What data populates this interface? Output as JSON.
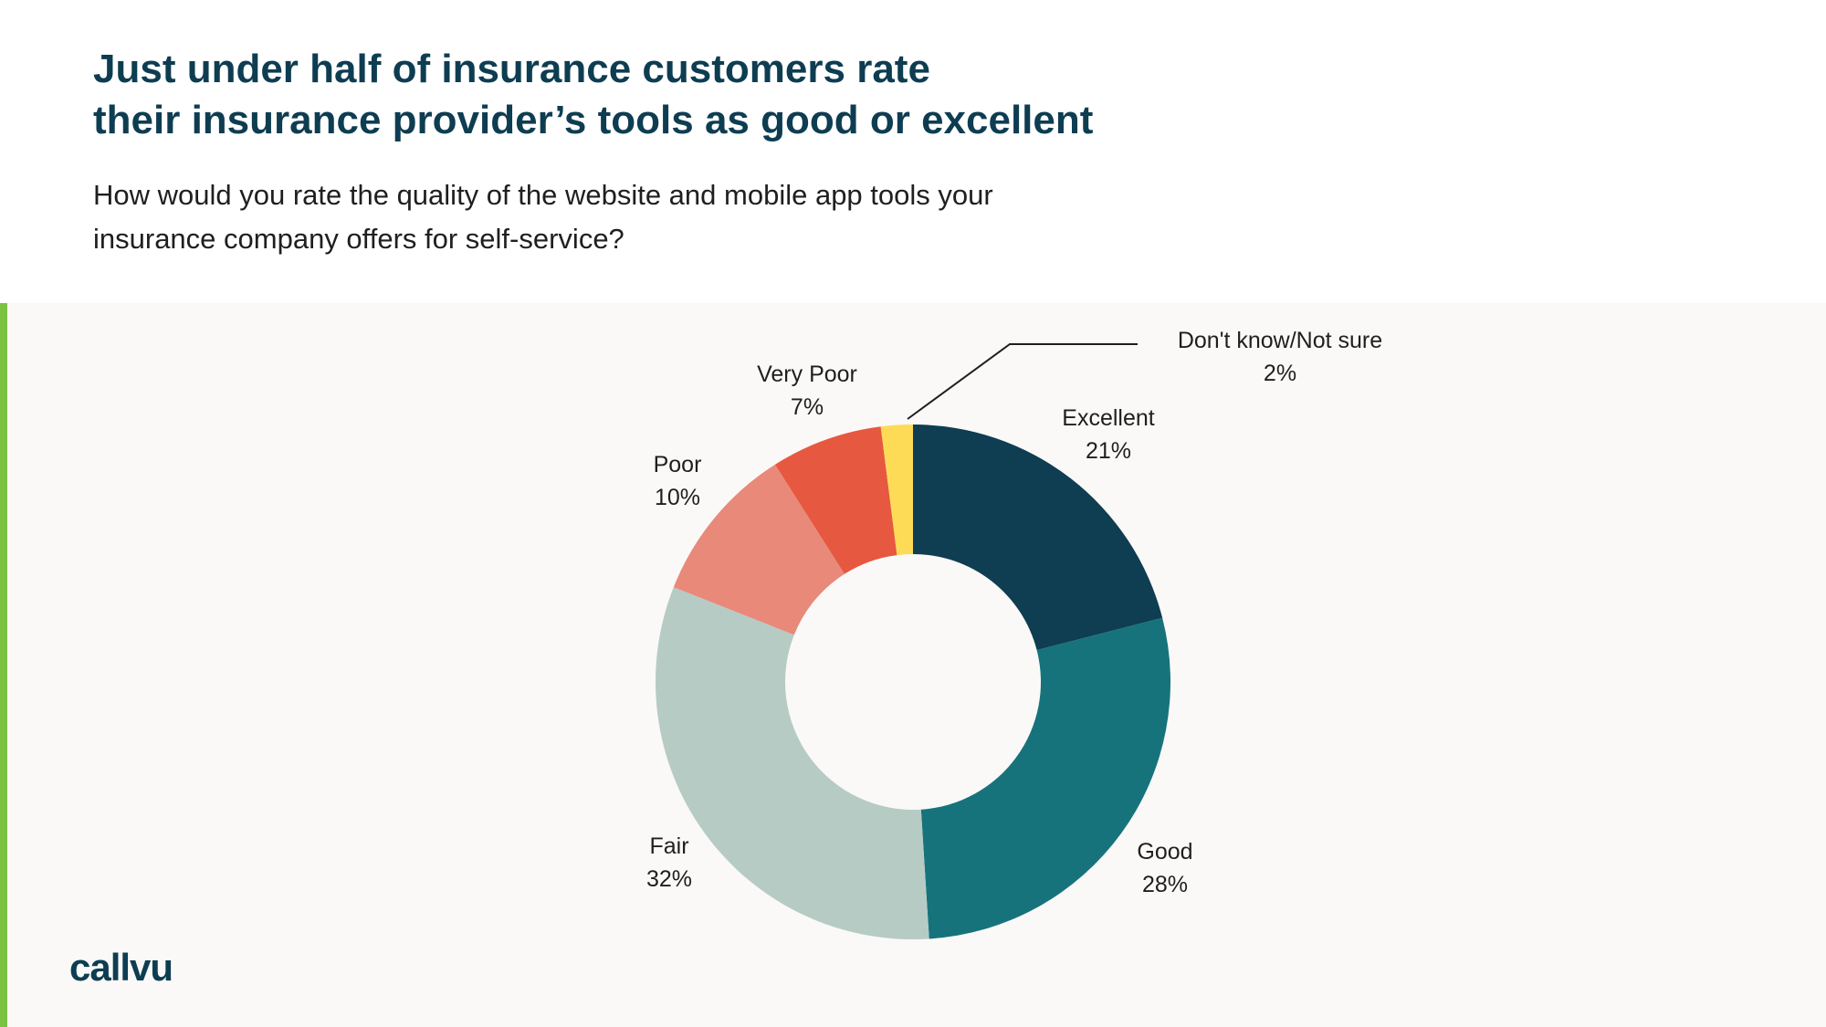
{
  "header": {
    "title_line1": "Just under half of insurance customers rate",
    "title_line2": "their insurance provider’s tools as good or excellent",
    "subtitle_line1": "How would you rate the quality of the website and mobile app tools your",
    "subtitle_line2": "insurance company offers for self-service?"
  },
  "logo": {
    "text": "callvu"
  },
  "colors": {
    "accent": "#7cc242",
    "title": "#0e3d52",
    "chart_background": "#faf9f7"
  },
  "chart_data": {
    "type": "pie",
    "donut": true,
    "start": "top, clockwise",
    "categories": [
      "Excellent",
      "Good",
      "Fair",
      "Poor",
      "Very Poor",
      "Don't know/Not sure"
    ],
    "values": [
      21,
      28,
      32,
      10,
      7,
      2
    ],
    "value_labels": [
      "21%",
      "28%",
      "32%",
      "10%",
      "7%",
      "2%"
    ],
    "colors": [
      "#0f3d52",
      "#16737c",
      "#b7cbc5",
      "#e8897a",
      "#e75840",
      "#fddb57"
    ],
    "legend": "none (direct labels)"
  }
}
